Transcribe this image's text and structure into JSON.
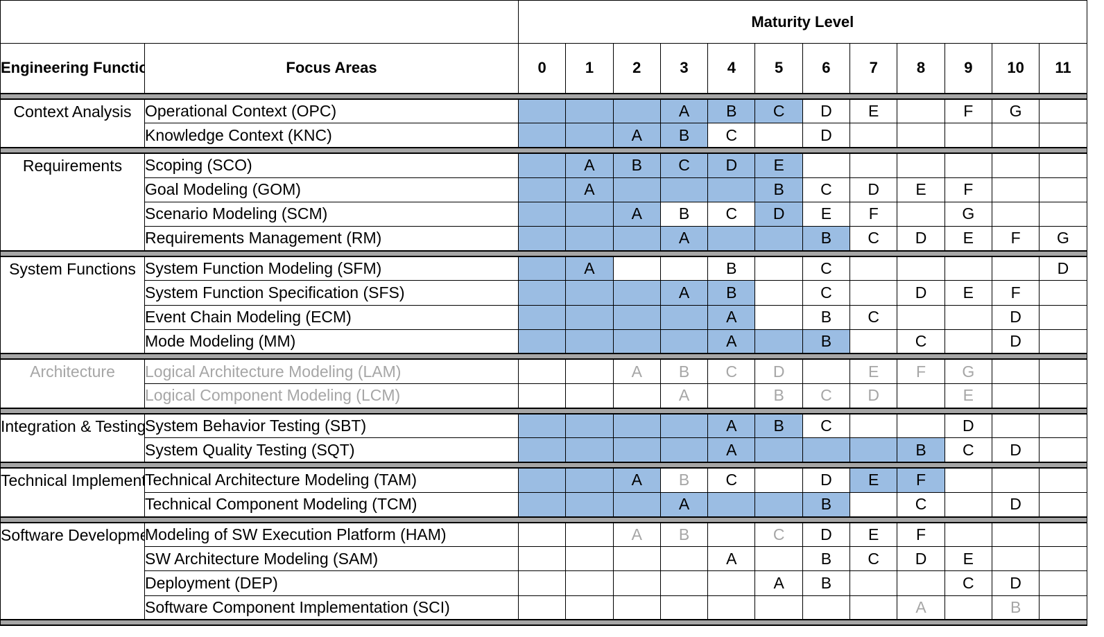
{
  "table": {
    "title": "Maturity Level",
    "header_engineering": "Engineering Functions",
    "header_focus": "Focus Areas",
    "levels": [
      "0",
      "1",
      "2",
      "3",
      "4",
      "5",
      "6",
      "7",
      "8",
      "9",
      "10",
      "11"
    ],
    "highlight_color": "#9bbde3",
    "muted_text_color": "#a6a6a6",
    "groups": [
      {
        "function": "Context Analysis",
        "rows": [
          {
            "focus": "Operational Context (OPC)",
            "cells": [
              "",
              "",
              "",
              "A",
              "B",
              "C",
              "D",
              "E",
              "",
              "F",
              "G",
              ""
            ],
            "fill": [
              1,
              1,
              1,
              1,
              1,
              1,
              0,
              0,
              0,
              0,
              0,
              0
            ],
            "muted": []
          },
          {
            "focus": "Knowledge Context (KNC)",
            "cells": [
              "",
              "",
              "A",
              "B",
              "C",
              "",
              "D",
              "",
              "",
              "",
              "",
              ""
            ],
            "fill": [
              1,
              1,
              1,
              1,
              0,
              0,
              0,
              0,
              0,
              0,
              0,
              0
            ],
            "muted": []
          }
        ]
      },
      {
        "function": "Requirements",
        "rows": [
          {
            "focus": "Scoping (SCO)",
            "cells": [
              "",
              "A",
              "B",
              "C",
              "D",
              "E",
              "",
              "",
              "",
              "",
              "",
              ""
            ],
            "fill": [
              1,
              1,
              1,
              1,
              1,
              1,
              0,
              0,
              0,
              0,
              0,
              0
            ],
            "muted": []
          },
          {
            "focus": "Goal Modeling (GOM)",
            "cells": [
              "",
              "A",
              "",
              "",
              "",
              "B",
              "C",
              "D",
              "E",
              "F",
              "",
              ""
            ],
            "fill": [
              1,
              1,
              1,
              1,
              1,
              1,
              0,
              0,
              0,
              0,
              0,
              0
            ],
            "muted": []
          },
          {
            "focus": "Scenario Modeling (SCM)",
            "cells": [
              "",
              "",
              "A",
              "B",
              "C",
              "D",
              "E",
              "F",
              "",
              "G",
              "",
              ""
            ],
            "fill": [
              1,
              1,
              1,
              0,
              0,
              1,
              0,
              0,
              0,
              0,
              0,
              0
            ],
            "muted": []
          },
          {
            "focus": "Requirements Management (RM)",
            "cells": [
              "",
              "",
              "",
              "A",
              "",
              "",
              "B",
              "C",
              "D",
              "E",
              "F",
              "G"
            ],
            "fill": [
              1,
              1,
              1,
              1,
              1,
              1,
              1,
              0,
              0,
              0,
              0,
              0
            ],
            "muted": []
          }
        ]
      },
      {
        "function": "System Functions",
        "rows": [
          {
            "focus": "System Function Modeling (SFM)",
            "cells": [
              "",
              "A",
              "",
              "",
              "B",
              "",
              "C",
              "",
              "",
              "",
              "",
              "D"
            ],
            "fill": [
              1,
              1,
              0,
              0,
              0,
              0,
              0,
              0,
              0,
              0,
              0,
              0
            ],
            "muted": []
          },
          {
            "focus": "System Function Specification (SFS)",
            "cells": [
              "",
              "",
              "",
              "A",
              "B",
              "",
              "C",
              "",
              "D",
              "E",
              "F",
              ""
            ],
            "fill": [
              1,
              1,
              1,
              1,
              1,
              0,
              0,
              0,
              0,
              0,
              0,
              0
            ],
            "muted": []
          },
          {
            "focus": "Event Chain Modeling (ECM)",
            "cells": [
              "",
              "",
              "",
              "",
              "A",
              "",
              "B",
              "C",
              "",
              "",
              "D",
              ""
            ],
            "fill": [
              1,
              1,
              1,
              1,
              1,
              0,
              0,
              0,
              0,
              0,
              0,
              0
            ],
            "muted": []
          },
          {
            "focus": "Mode Modeling (MM)",
            "cells": [
              "",
              "",
              "",
              "",
              "A",
              "",
              "B",
              "",
              "C",
              "",
              "D",
              ""
            ],
            "fill": [
              1,
              1,
              1,
              1,
              1,
              1,
              1,
              0,
              0,
              0,
              0,
              0
            ],
            "muted": []
          }
        ]
      },
      {
        "function": "Architecture",
        "muted_function": true,
        "rows": [
          {
            "focus": "Logical Architecture Modeling (LAM)",
            "muted_focus": true,
            "cells": [
              "",
              "",
              "A",
              "B",
              "C",
              "D",
              "",
              "E",
              "F",
              "G",
              "",
              ""
            ],
            "fill": [
              0,
              0,
              0,
              0,
              0,
              0,
              0,
              0,
              0,
              0,
              0,
              0
            ],
            "muted": [
              2,
              3,
              4,
              5,
              7,
              8,
              9
            ]
          },
          {
            "focus": "Logical Component Modeling (LCM)",
            "muted_focus": true,
            "cells": [
              "",
              "",
              "",
              "A",
              "",
              "B",
              "C",
              "D",
              "",
              "E",
              "",
              ""
            ],
            "fill": [
              0,
              0,
              0,
              0,
              0,
              0,
              0,
              0,
              0,
              0,
              0,
              0
            ],
            "muted": [
              3,
              5,
              6,
              7,
              9
            ]
          }
        ]
      },
      {
        "function": "Integration & Testing",
        "rows": [
          {
            "focus": "System Behavior Testing (SBT)",
            "cells": [
              "",
              "",
              "",
              "",
              "A",
              "B",
              "C",
              "",
              "",
              "D",
              "",
              ""
            ],
            "fill": [
              1,
              1,
              1,
              1,
              1,
              1,
              0,
              0,
              0,
              0,
              0,
              0
            ],
            "muted": []
          },
          {
            "focus": "System Quality Testing (SQT)",
            "cells": [
              "",
              "",
              "",
              "",
              "A",
              "",
              "",
              "",
              "B",
              "C",
              "D",
              ""
            ],
            "fill": [
              1,
              1,
              1,
              1,
              1,
              1,
              1,
              1,
              1,
              0,
              0,
              0
            ],
            "muted": []
          }
        ]
      },
      {
        "function": "Technical Implementation",
        "rows": [
          {
            "focus": "Technical Architecture Modeling (TAM)",
            "cells": [
              "",
              "",
              "A",
              "B",
              "C",
              "",
              "D",
              "E",
              "F",
              "",
              "",
              ""
            ],
            "fill": [
              1,
              1,
              1,
              0,
              0,
              0,
              0,
              1,
              1,
              0,
              0,
              0
            ],
            "muted": [
              3
            ]
          },
          {
            "focus": "Technical Component Modeling (TCM)",
            "cells": [
              "",
              "",
              "",
              "A",
              "",
              "",
              "B",
              "",
              "C",
              "",
              "D",
              ""
            ],
            "fill": [
              1,
              1,
              1,
              1,
              1,
              1,
              1,
              0,
              0,
              0,
              0,
              0
            ],
            "muted": []
          }
        ]
      },
      {
        "function": "Software Development",
        "rows": [
          {
            "focus": "Modeling of SW Execution Platform  (HAM)",
            "cells": [
              "",
              "",
              "A",
              "B",
              "",
              "C",
              "D",
              "E",
              "F",
              "",
              "",
              ""
            ],
            "fill": [
              0,
              0,
              0,
              0,
              0,
              0,
              0,
              0,
              0,
              0,
              0,
              0
            ],
            "muted": [
              2,
              3,
              5
            ]
          },
          {
            "focus": "SW Architecture Modeling (SAM)",
            "cells": [
              "",
              "",
              "",
              "",
              "A",
              "",
              "B",
              "C",
              "D",
              "E",
              "",
              ""
            ],
            "fill": [
              0,
              0,
              0,
              0,
              0,
              0,
              0,
              0,
              0,
              0,
              0,
              0
            ],
            "muted": []
          },
          {
            "focus": "Deployment (DEP)",
            "cells": [
              "",
              "",
              "",
              "",
              "",
              "A",
              "B",
              "",
              "",
              "C",
              "D",
              ""
            ],
            "fill": [
              0,
              0,
              0,
              0,
              0,
              0,
              0,
              0,
              0,
              0,
              0,
              0
            ],
            "muted": []
          },
          {
            "focus": "Software Component Implementation (SCI)",
            "cells": [
              "",
              "",
              "",
              "",
              "",
              "",
              "",
              "",
              "A",
              "",
              "B",
              ""
            ],
            "fill": [
              0,
              0,
              0,
              0,
              0,
              0,
              0,
              0,
              0,
              0,
              0,
              0
            ],
            "muted": [
              8,
              10
            ]
          }
        ]
      }
    ]
  }
}
